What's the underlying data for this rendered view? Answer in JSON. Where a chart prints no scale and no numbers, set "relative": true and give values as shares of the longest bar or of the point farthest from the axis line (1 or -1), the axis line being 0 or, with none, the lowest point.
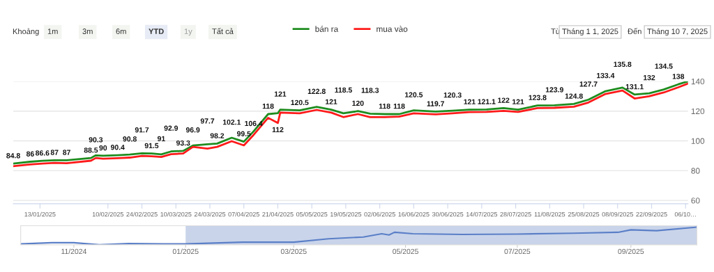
{
  "chart_data": [
    {
      "type": "line",
      "legend": "top",
      "grid": "y",
      "marker": "none",
      "line_style": "solid",
      "x": [
        "2025-01-02",
        "2025-01-09",
        "2025-01-14",
        "2025-01-19",
        "2025-01-24",
        "2025-02-03",
        "2025-02-05",
        "2025-02-08",
        "2025-02-14",
        "2025-02-19",
        "2025-02-24",
        "2025-02-28",
        "2025-03-04",
        "2025-03-08",
        "2025-03-13",
        "2025-03-17",
        "2025-03-23",
        "2025-03-27",
        "2025-04-02",
        "2025-04-07",
        "2025-04-11",
        "2025-04-17",
        "2025-04-21",
        "2025-04-22",
        "2025-04-30",
        "2025-05-07",
        "2025-05-13",
        "2025-05-18",
        "2025-05-24",
        "2025-05-29",
        "2025-06-04",
        "2025-06-10",
        "2025-06-16",
        "2025-06-25",
        "2025-07-02",
        "2025-07-09",
        "2025-07-16",
        "2025-07-23",
        "2025-07-29",
        "2025-08-06",
        "2025-08-13",
        "2025-08-21",
        "2025-08-27",
        "2025-09-03",
        "2025-09-10",
        "2025-09-15",
        "2025-09-21",
        "2025-09-27",
        "2025-10-03",
        "2025-10-07"
      ],
      "series": [
        {
          "name": "bán ra",
          "color": "#1e8c1e",
          "values": [
            84.8,
            86,
            86.6,
            87,
            87,
            88.5,
            90.3,
            90,
            90.4,
            90.8,
            91.7,
            91.5,
            91,
            92.9,
            93.3,
            96.9,
            97.7,
            98.2,
            102.1,
            99.5,
            106.4,
            118,
            118.6,
            121,
            120.5,
            122.8,
            121,
            118.5,
            120,
            118.3,
            118,
            118,
            120.5,
            119.7,
            120.3,
            121,
            121.1,
            122,
            121,
            123.8,
            123.9,
            124.8,
            127.7,
            133.4,
            135.8,
            131.1,
            132,
            134.5,
            138,
            140
          ],
          "value_labels": [
            "84.8",
            "86",
            "86.6",
            "87",
            "87",
            "88.5",
            "90.3",
            "90",
            "90.4",
            "90.8",
            "91.7",
            "91.5",
            "91",
            "92.9",
            "93.3",
            "96.9",
            "97.7",
            "98.2",
            "102.1",
            "99.5",
            "106.4",
            "118",
            null,
            "121",
            "120.5",
            "122.8",
            "121",
            "118.5",
            "120",
            "118.3",
            "118",
            "118",
            "120.5",
            "119.7",
            "120.3",
            "121",
            "121.1",
            "122",
            "121",
            "123.8",
            "123.9",
            "124.8",
            "127.7",
            "133.4",
            "135.8",
            "131.1",
            "132",
            "134.5",
            "138",
            null
          ]
        },
        {
          "name": "mua vào",
          "color": "#ff1a1a",
          "values": [
            83,
            84.2,
            84.8,
            85.2,
            85,
            86.7,
            88.5,
            88,
            88.4,
            88.8,
            89.9,
            89.7,
            89.2,
            91.1,
            91.5,
            96,
            94.8,
            96,
            99.8,
            97,
            104,
            115.5,
            112,
            119,
            118.5,
            120.8,
            119,
            116,
            118,
            116,
            116,
            116.3,
            118.5,
            117.8,
            118.5,
            119.3,
            119.5,
            120.2,
            119.5,
            122,
            122.2,
            123,
            125.8,
            131.5,
            133.8,
            128.5,
            130,
            132.5,
            136,
            138.5
          ],
          "value_labels": [
            null,
            null,
            null,
            null,
            null,
            null,
            null,
            null,
            null,
            null,
            null,
            null,
            null,
            null,
            null,
            null,
            null,
            null,
            null,
            null,
            null,
            null,
            "112",
            null,
            null,
            null,
            null,
            null,
            null,
            null,
            null,
            null,
            null,
            null,
            null,
            null,
            null,
            null,
            null,
            null,
            null,
            null,
            null,
            null,
            null,
            null,
            null,
            null,
            null,
            null
          ]
        }
      ],
      "xlim": [
        "2025-01-02",
        "2025-10-07"
      ],
      "xticks": [
        {
          "value": "2025-01-13",
          "label": "13/01/2025"
        },
        {
          "value": "2025-02-10",
          "label": "10/02/2025"
        },
        {
          "value": "2025-02-24",
          "label": "24/02/2025"
        },
        {
          "value": "2025-03-10",
          "label": "10/03/2025"
        },
        {
          "value": "2025-03-24",
          "label": "24/03/2025"
        },
        {
          "value": "2025-04-07",
          "label": "07/04/2025"
        },
        {
          "value": "2025-04-21",
          "label": "21/04/2025"
        },
        {
          "value": "2025-05-05",
          "label": "05/05/2025"
        },
        {
          "value": "2025-05-19",
          "label": "19/05/2025"
        },
        {
          "value": "2025-06-02",
          "label": "02/06/2025"
        },
        {
          "value": "2025-06-16",
          "label": "16/06/2025"
        },
        {
          "value": "2025-06-30",
          "label": "30/06/2025"
        },
        {
          "value": "2025-07-14",
          "label": "14/07/2025"
        },
        {
          "value": "2025-07-28",
          "label": "28/07/2025"
        },
        {
          "value": "2025-08-11",
          "label": "11/08/2025"
        },
        {
          "value": "2025-08-25",
          "label": "25/08/2025"
        },
        {
          "value": "2025-09-08",
          "label": "08/09/2025"
        },
        {
          "value": "2025-09-22",
          "label": "22/09/2025"
        },
        {
          "value": "2025-10-06",
          "label": "06/10…"
        }
      ],
      "ylim": [
        57.8,
        140
      ],
      "yticks": [
        60,
        80,
        100,
        120,
        140
      ],
      "annotations": [
        "Khoảng",
        "1m",
        "3m",
        "6m",
        "YTD",
        "1y",
        "Tất cả",
        "Từ",
        "Tháng 1 1, 2025",
        "Đến",
        "Tháng 10 7, 2025"
      ]
    },
    {
      "type": "line",
      "relative": true,
      "marker": "none",
      "line_style": "solid",
      "series": [
        {
          "color": "#5b7fc7",
          "x": [
            "2024-10-03",
            "2024-10-20",
            "2024-11-01",
            "2024-11-15",
            "2024-12-01",
            "2024-12-20",
            "2025-01-01",
            "2025-02-01",
            "2025-03-01",
            "2025-03-20",
            "2025-04-08",
            "2025-04-18",
            "2025-04-22",
            "2025-04-25",
            "2025-05-05",
            "2025-06-01",
            "2025-07-01",
            "2025-08-01",
            "2025-08-25",
            "2025-09-01",
            "2025-09-15",
            "2025-10-07"
          ],
          "values": [
            0.05,
            0.12,
            0.12,
            0,
            0.07,
            0.05,
            0.05,
            0.15,
            0.15,
            0.34,
            0.44,
            0.63,
            0.56,
            0.71,
            0.63,
            0.59,
            0.61,
            0.66,
            0.71,
            0.85,
            0.8,
            1
          ]
        }
      ],
      "xlim": [
        "2024-10-03",
        "2025-10-07"
      ],
      "xticks": [
        {
          "value": "2024-11-01",
          "label": "11/2024"
        },
        {
          "value": "2025-01-01",
          "label": "01/2025"
        },
        {
          "value": "2025-03-01",
          "label": "03/2025"
        },
        {
          "value": "2025-05-01",
          "label": "05/2025"
        },
        {
          "value": "2025-07-01",
          "label": "07/2025"
        },
        {
          "value": "2025-09-01",
          "label": "09/2025"
        }
      ],
      "bands": [
        {
          "axis": "x",
          "from": "2025-01-01",
          "to": "2025-10-07",
          "color": "#c9d4ea"
        }
      ],
      "tick_labels": "x"
    }
  ]
}
